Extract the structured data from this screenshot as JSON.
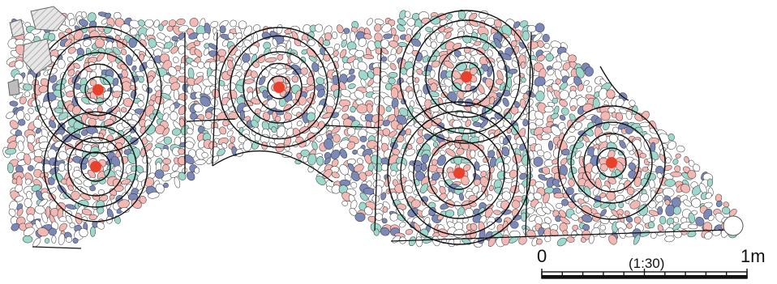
{
  "scale_bar": {
    "start_label": "0",
    "ratio_label": "(1:30)",
    "end_label": "1m"
  },
  "legend_colors": {
    "pink": "#f4b8b4",
    "teal": "#9ed8cc",
    "blue": "#7b88b8",
    "white": "#ffffff",
    "center": "#e8412c",
    "outline": "#333333",
    "line": "#111111",
    "hatch": "#bdbdbd"
  },
  "ring_centers_count": 6
}
